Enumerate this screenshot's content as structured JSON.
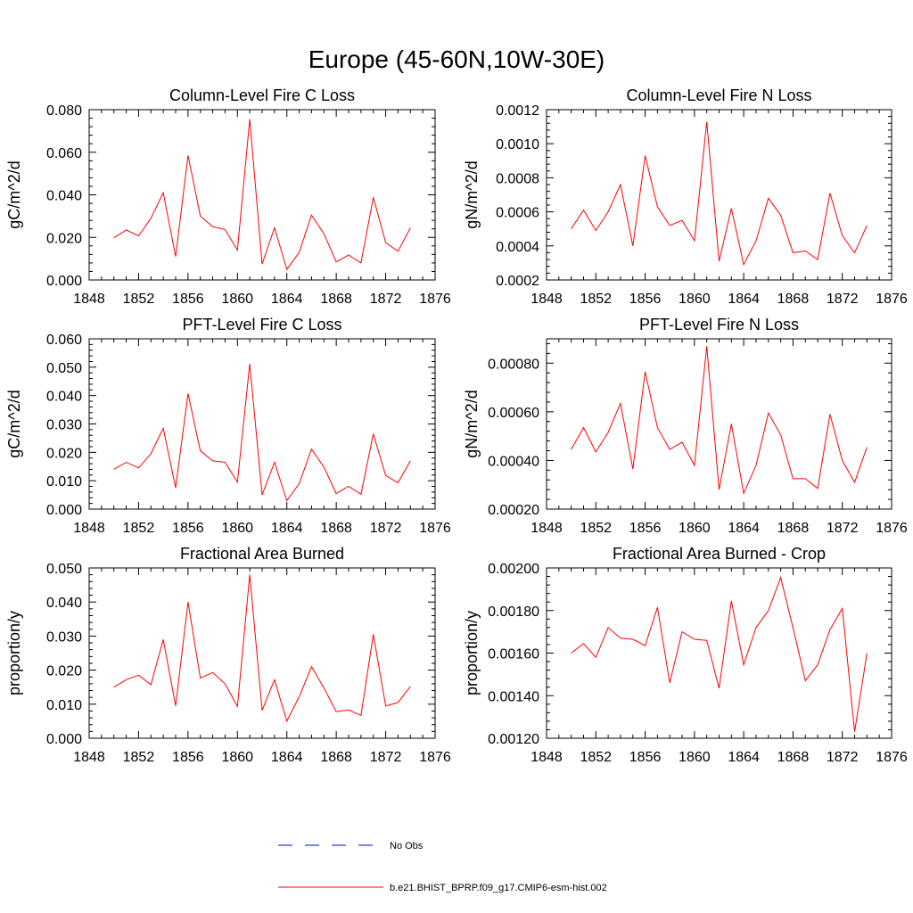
{
  "figure": {
    "title": "Europe (45-60N,10W-30E)",
    "line_color": "#ff0000",
    "obs_color": "#0000ff"
  },
  "legend": {
    "obs_label": "No Obs",
    "model_label": "b.e21.BHIST_BPRP.f09_g17.CMIP6-esm-hist.002"
  },
  "chart_data": [
    {
      "type": "line",
      "title": "Column-Level Fire C Loss",
      "ylabel": "gC/m^2/d",
      "xlim": [
        1848,
        1876
      ],
      "ylim": [
        0.0,
        0.08
      ],
      "xticks": [
        1848,
        1852,
        1856,
        1860,
        1864,
        1868,
        1872,
        1876
      ],
      "xtick_labels": [
        "1848",
        "1852",
        "1856",
        "1860",
        "1864",
        "1868",
        "1872",
        "1876"
      ],
      "yticks": [
        0.0,
        0.02,
        0.04,
        0.06,
        0.08
      ],
      "ytick_labels": [
        "0.000",
        "0.020",
        "0.040",
        "0.060",
        "0.080"
      ],
      "x": [
        1850,
        1851,
        1852,
        1853,
        1854,
        1855,
        1856,
        1857,
        1858,
        1859,
        1860,
        1861,
        1862,
        1863,
        1864,
        1865,
        1866,
        1867,
        1868,
        1869,
        1870,
        1871,
        1872,
        1873,
        1874
      ],
      "series": [
        {
          "values": [
            0.0198,
            0.0235,
            0.0207,
            0.029,
            0.041,
            0.011,
            0.0585,
            0.03,
            0.025,
            0.0237,
            0.014,
            0.0755,
            0.0075,
            0.0245,
            0.005,
            0.013,
            0.0305,
            0.0217,
            0.0085,
            0.0117,
            0.008,
            0.0388,
            0.0175,
            0.0135,
            0.0245
          ]
        }
      ]
    },
    {
      "type": "line",
      "title": "Column-Level Fire N Loss",
      "ylabel": "gN/m^2/d",
      "xlim": [
        1848,
        1876
      ],
      "ylim": [
        0.0002,
        0.0012
      ],
      "xticks": [
        1848,
        1852,
        1856,
        1860,
        1864,
        1868,
        1872,
        1876
      ],
      "xtick_labels": [
        "1848",
        "1852",
        "1856",
        "1860",
        "1864",
        "1868",
        "1872",
        "1876"
      ],
      "yticks": [
        0.0002,
        0.0004,
        0.0006,
        0.0008,
        0.001,
        0.0012
      ],
      "ytick_labels": [
        "0.0002",
        "0.0004",
        "0.0006",
        "0.0008",
        "0.0010",
        "0.0012"
      ],
      "x": [
        1850,
        1851,
        1852,
        1853,
        1854,
        1855,
        1856,
        1857,
        1858,
        1859,
        1860,
        1861,
        1862,
        1863,
        1864,
        1865,
        1866,
        1867,
        1868,
        1869,
        1870,
        1871,
        1872,
        1873,
        1874
      ],
      "series": [
        {
          "values": [
            0.0005,
            0.00061,
            0.00049,
            0.0006,
            0.00076,
            0.0004,
            0.00093,
            0.00063,
            0.00052,
            0.00055,
            0.00043,
            0.00113,
            0.00031,
            0.00062,
            0.00029,
            0.00043,
            0.00068,
            0.00058,
            0.00036,
            0.00037,
            0.00032,
            0.00071,
            0.00046,
            0.00036,
            0.00052
          ]
        }
      ]
    },
    {
      "type": "line",
      "title": "PFT-Level Fire C Loss",
      "ylabel": "gC/m^2/d",
      "xlim": [
        1848,
        1876
      ],
      "ylim": [
        0.0,
        0.06
      ],
      "xticks": [
        1848,
        1852,
        1856,
        1860,
        1864,
        1868,
        1872,
        1876
      ],
      "xtick_labels": [
        "1848",
        "1852",
        "1856",
        "1860",
        "1864",
        "1868",
        "1872",
        "1876"
      ],
      "yticks": [
        0.0,
        0.01,
        0.02,
        0.03,
        0.04,
        0.05,
        0.06
      ],
      "ytick_labels": [
        "0.000",
        "0.010",
        "0.020",
        "0.030",
        "0.040",
        "0.050",
        "0.060"
      ],
      "x": [
        1850,
        1851,
        1852,
        1853,
        1854,
        1855,
        1856,
        1857,
        1858,
        1859,
        1860,
        1861,
        1862,
        1863,
        1864,
        1865,
        1866,
        1867,
        1868,
        1869,
        1870,
        1871,
        1872,
        1873,
        1874
      ],
      "series": [
        {
          "values": [
            0.014,
            0.0165,
            0.0145,
            0.0195,
            0.0285,
            0.0075,
            0.0407,
            0.0205,
            0.017,
            0.0165,
            0.0095,
            0.0512,
            0.005,
            0.0165,
            0.003,
            0.009,
            0.0211,
            0.0148,
            0.0055,
            0.008,
            0.0052,
            0.0265,
            0.0118,
            0.0093,
            0.017
          ]
        }
      ]
    },
    {
      "type": "line",
      "title": "PFT-Level Fire N Loss",
      "ylabel": "gN/m^2/d",
      "xlim": [
        1848,
        1876
      ],
      "ylim": [
        0.0002,
        0.0009
      ],
      "xticks": [
        1848,
        1852,
        1856,
        1860,
        1864,
        1868,
        1872,
        1876
      ],
      "xtick_labels": [
        "1848",
        "1852",
        "1856",
        "1860",
        "1864",
        "1868",
        "1872",
        "1876"
      ],
      "yticks": [
        0.0002,
        0.0004,
        0.0006,
        0.0008
      ],
      "ytick_labels": [
        "0.00020",
        "0.00040",
        "0.00060",
        "0.00080"
      ],
      "x": [
        1850,
        1851,
        1852,
        1853,
        1854,
        1855,
        1856,
        1857,
        1858,
        1859,
        1860,
        1861,
        1862,
        1863,
        1864,
        1865,
        1866,
        1867,
        1868,
        1869,
        1870,
        1871,
        1872,
        1873,
        1874
      ],
      "series": [
        {
          "values": [
            0.000445,
            0.000535,
            0.000435,
            0.000515,
            0.000635,
            0.000365,
            0.000765,
            0.000535,
            0.000445,
            0.000475,
            0.00038,
            0.00087,
            0.00028,
            0.00055,
            0.000265,
            0.00038,
            0.000595,
            0.000505,
            0.000325,
            0.000325,
            0.000285,
            0.00059,
            0.0004,
            0.00031,
            0.000455
          ]
        }
      ]
    },
    {
      "type": "line",
      "title": "Fractional Area Burned",
      "ylabel": "proportion/y",
      "xlim": [
        1848,
        1876
      ],
      "ylim": [
        0.0,
        0.05
      ],
      "xticks": [
        1848,
        1852,
        1856,
        1860,
        1864,
        1868,
        1872,
        1876
      ],
      "xtick_labels": [
        "1848",
        "1852",
        "1856",
        "1860",
        "1864",
        "1868",
        "1872",
        "1876"
      ],
      "yticks": [
        0.0,
        0.01,
        0.02,
        0.03,
        0.04,
        0.05
      ],
      "ytick_labels": [
        "0.000",
        "0.010",
        "0.020",
        "0.030",
        "0.040",
        "0.050"
      ],
      "x": [
        1850,
        1851,
        1852,
        1853,
        1854,
        1855,
        1856,
        1857,
        1858,
        1859,
        1860,
        1861,
        1862,
        1863,
        1864,
        1865,
        1866,
        1867,
        1868,
        1869,
        1870,
        1871,
        1872,
        1873,
        1874
      ],
      "series": [
        {
          "values": [
            0.015,
            0.0172,
            0.0185,
            0.0157,
            0.029,
            0.0095,
            0.04,
            0.0177,
            0.0193,
            0.016,
            0.0093,
            0.048,
            0.0082,
            0.0172,
            0.005,
            0.0122,
            0.021,
            0.0148,
            0.0078,
            0.0083,
            0.0067,
            0.0305,
            0.0095,
            0.0105,
            0.0152
          ]
        }
      ]
    },
    {
      "type": "line",
      "title": "Fractional Area Burned - Crop",
      "ylabel": "proportion/y",
      "xlim": [
        1848,
        1876
      ],
      "ylim": [
        0.0012,
        0.002
      ],
      "xticks": [
        1848,
        1852,
        1856,
        1860,
        1864,
        1868,
        1872,
        1876
      ],
      "xtick_labels": [
        "1848",
        "1852",
        "1856",
        "1860",
        "1864",
        "1868",
        "1872",
        "1876"
      ],
      "yticks": [
        0.0012,
        0.0014,
        0.0016,
        0.0018,
        0.002
      ],
      "ytick_labels": [
        "0.00120",
        "0.00140",
        "0.00160",
        "0.00180",
        "0.00200"
      ],
      "x": [
        1850,
        1851,
        1852,
        1853,
        1854,
        1855,
        1856,
        1857,
        1858,
        1859,
        1860,
        1861,
        1862,
        1863,
        1864,
        1865,
        1866,
        1867,
        1868,
        1869,
        1870,
        1871,
        1872,
        1873,
        1874
      ],
      "series": [
        {
          "values": [
            0.0016,
            0.001645,
            0.00158,
            0.00172,
            0.00167,
            0.001665,
            0.001635,
            0.001815,
            0.00146,
            0.0017,
            0.001665,
            0.00166,
            0.001435,
            0.001845,
            0.001545,
            0.00172,
            0.0018,
            0.001955,
            0.00172,
            0.00147,
            0.001545,
            0.00171,
            0.00181,
            0.00123,
            0.0016
          ]
        }
      ]
    }
  ]
}
